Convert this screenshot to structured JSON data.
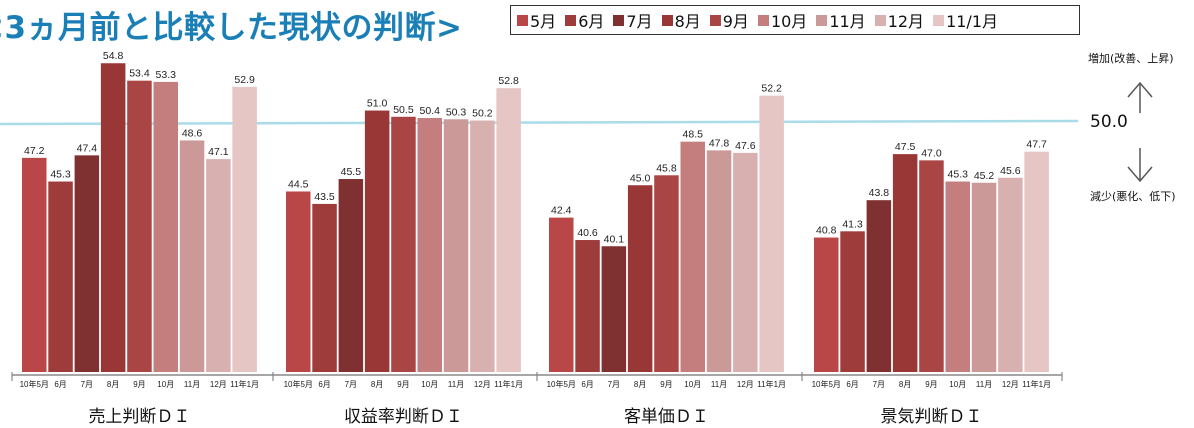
{
  "title": "<3ヵ月前と比較した現状の判断>",
  "colors": {
    "title": "#1a7fb6",
    "reference_line": "#a9dbe8",
    "series": [
      "#b94747",
      "#9e3b3b",
      "#7f3030",
      "#993737",
      "#aa4545",
      "#c47e7e",
      "#cc9999",
      "#d8b0b0",
      "#e6c5c5"
    ]
  },
  "annotations": {
    "up_label": "増加(改善、上昇)",
    "down_label": "減少(悪化、低下)",
    "reference_value_label": "50.0"
  },
  "chart_data": {
    "type": "bar",
    "title": "<3ヵ月前と比較した現状の判断>",
    "legend": [
      "5月",
      "6月",
      "7月",
      "8月",
      "9月",
      "10月",
      "11月",
      "12月",
      "11/1月"
    ],
    "legend_position": "top",
    "categories": [
      "売上判断ＤＩ",
      "収益率判断ＤＩ",
      "客単価ＤＩ",
      "景気判断ＤＩ"
    ],
    "bar_tick_labels": [
      "10年5月",
      "6月",
      "7月",
      "8月",
      "9月",
      "10月",
      "11月",
      "12月",
      "11年1月"
    ],
    "series": [
      {
        "name": "5月",
        "values": [
          47.2,
          44.5,
          42.4,
          40.8
        ]
      },
      {
        "name": "6月",
        "values": [
          45.3,
          43.5,
          40.6,
          41.3
        ]
      },
      {
        "name": "7月",
        "values": [
          47.4,
          45.5,
          40.1,
          43.8
        ]
      },
      {
        "name": "8月",
        "values": [
          54.8,
          51.0,
          45.0,
          47.5
        ]
      },
      {
        "name": "9月",
        "values": [
          53.4,
          50.5,
          45.8,
          47.0
        ]
      },
      {
        "name": "10月",
        "values": [
          53.3,
          50.4,
          48.5,
          45.3
        ]
      },
      {
        "name": "11月",
        "values": [
          48.6,
          50.3,
          47.8,
          45.2
        ]
      },
      {
        "name": "12月",
        "values": [
          47.1,
          50.2,
          47.6,
          45.6
        ]
      },
      {
        "name": "11/1月",
        "values": [
          52.9,
          52.8,
          52.2,
          47.7
        ]
      }
    ],
    "reference_line": 50.0,
    "ylim": [
      30,
      56
    ],
    "grid": false
  }
}
